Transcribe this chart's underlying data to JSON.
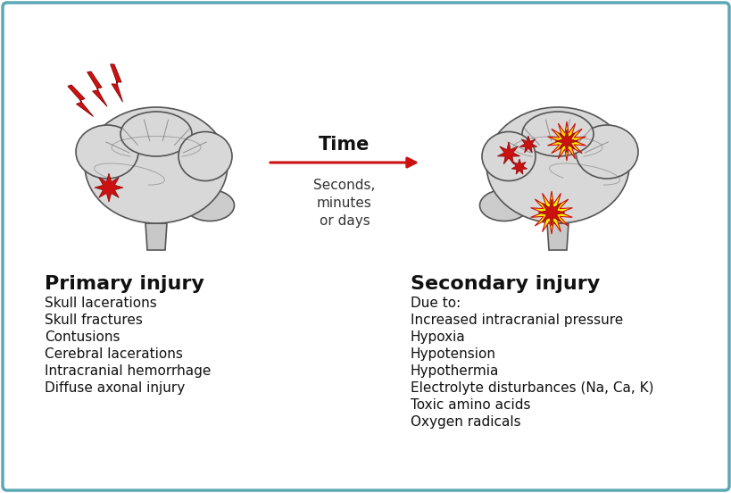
{
  "background_color": "#ffffff",
  "border_color": "#5ba8b5",
  "title_time": "Time",
  "subtitle_time": "Seconds,\nminutes\nor days",
  "primary_title": "Primary injury",
  "primary_items": [
    "Skull lacerations",
    "Skull fractures",
    "Contusions",
    "Cerebral lacerations",
    "Intracranial hemorrhage",
    "Diffuse axonal injury"
  ],
  "secondary_title": "Secondary injury",
  "secondary_items": [
    "Due to:",
    "Increased intracranial pressure",
    "Hypoxia",
    "Hypotension",
    "Hypothermia",
    "Electrolyte disturbances (Na, Ca, K)",
    "Toxic amino acids",
    "Oxygen radicals"
  ],
  "arrow_color": "#cc1111",
  "lightning_color": "#cc1111",
  "injury_spot_color": "#cc1111",
  "brain_fill": "#d8d8d8",
  "brain_stroke": "#555555",
  "stem_fill": "#c8c8c8",
  "cerebellum_fill": "#cccccc"
}
